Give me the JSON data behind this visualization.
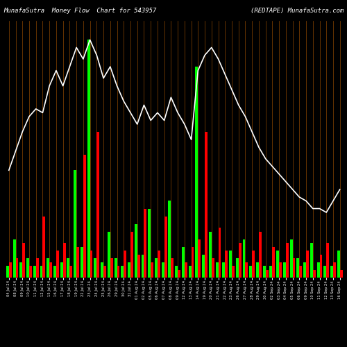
{
  "title_left": "MunafaSutra  Money Flow  Chart for 543957",
  "title_right": "(REDTAPE) MunafaSutra.com",
  "background_color": "#000000",
  "grid_color": "#8B4500",
  "line_color": "#ffffff",
  "buy_color": "#00ff00",
  "sell_color": "#ff0000",
  "title_color": "#ffffff",
  "title_fontsize": 6.5,
  "tick_fontsize": 3.8,
  "bar_width": 0.4,
  "n_bars": 50,
  "buy_values": [
    3,
    10,
    4,
    5,
    3,
    3,
    5,
    3,
    4,
    5,
    28,
    8,
    62,
    5,
    4,
    12,
    5,
    3,
    4,
    14,
    6,
    18,
    5,
    4,
    20,
    3,
    8,
    3,
    55,
    6,
    12,
    4,
    4,
    7,
    5,
    10,
    3,
    4,
    3,
    3,
    7,
    4,
    10,
    5,
    4,
    9,
    4,
    3,
    3,
    7
  ],
  "sell_values": [
    4,
    5,
    9,
    3,
    5,
    16,
    4,
    7,
    9,
    3,
    8,
    32,
    7,
    38,
    3,
    5,
    3,
    7,
    12,
    6,
    18,
    4,
    7,
    16,
    5,
    2,
    4,
    8,
    10,
    38,
    5,
    13,
    7,
    3,
    9,
    4,
    7,
    12,
    2,
    8,
    4,
    9,
    5,
    3,
    7,
    2,
    6,
    9,
    4,
    2
  ],
  "line_values": [
    28,
    33,
    38,
    42,
    44,
    43,
    50,
    54,
    50,
    55,
    60,
    57,
    62,
    58,
    52,
    55,
    50,
    46,
    43,
    40,
    45,
    41,
    43,
    41,
    47,
    43,
    40,
    36,
    54,
    58,
    60,
    57,
    53,
    49,
    45,
    42,
    38,
    34,
    31,
    29,
    27,
    25,
    23,
    21,
    20,
    18,
    18,
    17,
    20,
    23
  ],
  "x_labels": [
    "04 Jul 24",
    "08 Jul 24",
    "09 Jul 24",
    "10 Jul 24",
    "11 Jul 24",
    "12 Jul 24",
    "15 Jul 24",
    "16 Jul 24",
    "17 Jul 24",
    "18 Jul 24",
    "19 Jul 24",
    "22 Jul 24",
    "23 Jul 24",
    "24 Jul 24",
    "25 Jul 24",
    "26 Jul 24",
    "29 Jul 24",
    "30 Jul 24",
    "31 Jul 24",
    "01 Aug 24",
    "02 Aug 24",
    "05 Aug 24",
    "06 Aug 24",
    "07 Aug 24",
    "08 Aug 24",
    "09 Aug 24",
    "12 Aug 24",
    "13 Aug 24",
    "14 Aug 24",
    "19 Aug 24",
    "20 Aug 24",
    "21 Aug 24",
    "22 Aug 24",
    "23 Aug 24",
    "26 Aug 24",
    "27 Aug 24",
    "28 Aug 24",
    "29 Aug 24",
    "30 Aug 24",
    "02 Sep 24",
    "03 Sep 24",
    "04 Sep 24",
    "05 Sep 24",
    "06 Sep 24",
    "09 Sep 24",
    "10 Sep 24",
    "11 Sep 24",
    "12 Sep 24",
    "13 Sep 24",
    "16 Sep 24"
  ]
}
